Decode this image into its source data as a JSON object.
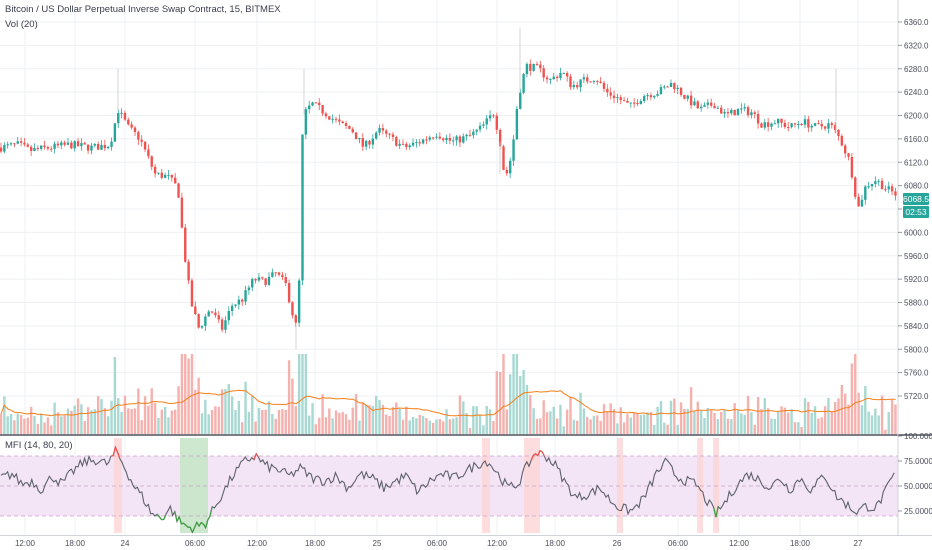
{
  "header": {
    "title": "Bitcoin / US Dollar Perpetual Inverse Swap Contract, 15, BITMEX",
    "volume_indicator": "Vol (20)",
    "mfi_indicator": "MFI (14, 80, 20)"
  },
  "price_tags": {
    "last_price": "6068.5",
    "countdown": "02:53"
  },
  "colors": {
    "up": "#26a69a",
    "down": "#ef5350",
    "vol_up": "#a8d8d2",
    "vol_down": "#f5b1ae",
    "vol_ma": "#f57f17",
    "mfi_line": "#5d606b",
    "mfi_band": "#f3e5f5",
    "overbought": "#fdd5d4",
    "oversold": "#c8e6c9"
  },
  "chart_data": [
    {
      "type": "candlestick",
      "series_name": "Bitcoin / US Dollar Perpetual Inverse Swap Contract, 15, BITMEX",
      "y_ticks": [
        5720,
        5760,
        5800,
        5840,
        5880,
        5920,
        5960,
        6000,
        6040,
        6080,
        6120,
        6160,
        6200,
        6240,
        6280,
        6320,
        6360
      ],
      "ylim": [
        5700,
        6380
      ],
      "x_tick_labels": [
        "12:00",
        "18:00",
        "24",
        "06:00",
        "12:00",
        "18:00",
        "25",
        "06:00",
        "12:00",
        "18:00",
        "26",
        "06:00",
        "12:00",
        "18:00",
        "27"
      ],
      "last_price": 6068.5,
      "anchors": [
        [
          0,
          6145
        ],
        [
          18,
          6150
        ],
        [
          30,
          6140
        ],
        [
          50,
          6145
        ],
        [
          70,
          6150
        ],
        [
          92,
          6145
        ],
        [
          110,
          6150
        ],
        [
          118,
          6210
        ],
        [
          128,
          6180
        ],
        [
          140,
          6160
        ],
        [
          155,
          6100
        ],
        [
          168,
          6095
        ],
        [
          178,
          6075
        ],
        [
          184,
          5970
        ],
        [
          191,
          5880
        ],
        [
          199,
          5835
        ],
        [
          210,
          5870
        ],
        [
          222,
          5835
        ],
        [
          232,
          5875
        ],
        [
          242,
          5885
        ],
        [
          254,
          5920
        ],
        [
          264,
          5915
        ],
        [
          276,
          5930
        ],
        [
          286,
          5910
        ],
        [
          294,
          5850
        ],
        [
          298,
          5830
        ],
        [
          303,
          6200
        ],
        [
          312,
          6220
        ],
        [
          325,
          6205
        ],
        [
          340,
          6185
        ],
        [
          352,
          6175
        ],
        [
          364,
          6145
        ],
        [
          378,
          6175
        ],
        [
          392,
          6160
        ],
        [
          404,
          6145
        ],
        [
          420,
          6155
        ],
        [
          436,
          6170
        ],
        [
          452,
          6155
        ],
        [
          470,
          6165
        ],
        [
          482,
          6180
        ],
        [
          494,
          6205
        ],
        [
          500,
          6155
        ],
        [
          505,
          6090
        ],
        [
          512,
          6135
        ],
        [
          518,
          6230
        ],
        [
          526,
          6285
        ],
        [
          538,
          6280
        ],
        [
          550,
          6260
        ],
        [
          562,
          6275
        ],
        [
          572,
          6250
        ],
        [
          584,
          6260
        ],
        [
          596,
          6265
        ],
        [
          606,
          6240
        ],
        [
          618,
          6230
        ],
        [
          630,
          6215
        ],
        [
          644,
          6235
        ],
        [
          658,
          6240
        ],
        [
          672,
          6255
        ],
        [
          686,
          6230
        ],
        [
          700,
          6210
        ],
        [
          714,
          6220
        ],
        [
          726,
          6200
        ],
        [
          740,
          6210
        ],
        [
          752,
          6205
        ],
        [
          762,
          6185
        ],
        [
          776,
          6190
        ],
        [
          790,
          6180
        ],
        [
          802,
          6190
        ],
        [
          816,
          6180
        ],
        [
          830,
          6185
        ],
        [
          840,
          6160
        ],
        [
          850,
          6120
        ],
        [
          858,
          6040
        ],
        [
          866,
          6080
        ],
        [
          876,
          6090
        ],
        [
          886,
          6075
        ],
        [
          896,
          6065
        ]
      ]
    },
    {
      "type": "bar",
      "series_name": "Vol (20)",
      "moving_average_length": 20
    },
    {
      "type": "line",
      "series_name": "MFI (14, 80, 20)",
      "y_ticks": [
        25,
        50,
        75,
        100
      ],
      "ylim": [
        0,
        100
      ],
      "overbought": 80,
      "oversold": 20,
      "anchors": [
        [
          0,
          58
        ],
        [
          12,
          62
        ],
        [
          22,
          52
        ],
        [
          32,
          55
        ],
        [
          42,
          46
        ],
        [
          52,
          60
        ],
        [
          62,
          52
        ],
        [
          72,
          64
        ],
        [
          84,
          74
        ],
        [
          96,
          76
        ],
        [
          108,
          72
        ],
        [
          116,
          85
        ],
        [
          124,
          70
        ],
        [
          134,
          50
        ],
        [
          142,
          40
        ],
        [
          152,
          22
        ],
        [
          162,
          18
        ],
        [
          170,
          28
        ],
        [
          180,
          14
        ],
        [
          190,
          8
        ],
        [
          198,
          10
        ],
        [
          206,
          13
        ],
        [
          214,
          28
        ],
        [
          224,
          45
        ],
        [
          234,
          62
        ],
        [
          246,
          76
        ],
        [
          256,
          80
        ],
        [
          266,
          70
        ],
        [
          278,
          66
        ],
        [
          290,
          60
        ],
        [
          300,
          68
        ],
        [
          312,
          58
        ],
        [
          324,
          55
        ],
        [
          336,
          60
        ],
        [
          348,
          48
        ],
        [
          360,
          62
        ],
        [
          372,
          58
        ],
        [
          384,
          48
        ],
        [
          396,
          55
        ],
        [
          406,
          60
        ],
        [
          418,
          44
        ],
        [
          430,
          55
        ],
        [
          442,
          62
        ],
        [
          454,
          58
        ],
        [
          466,
          65
        ],
        [
          478,
          72
        ],
        [
          488,
          75
        ],
        [
          498,
          62
        ],
        [
          508,
          48
        ],
        [
          518,
          52
        ],
        [
          526,
          68
        ],
        [
          536,
          84
        ],
        [
          546,
          80
        ],
        [
          556,
          70
        ],
        [
          566,
          52
        ],
        [
          576,
          38
        ],
        [
          588,
          42
        ],
        [
          600,
          48
        ],
        [
          610,
          36
        ],
        [
          620,
          28
        ],
        [
          632,
          25
        ],
        [
          644,
          38
        ],
        [
          656,
          62
        ],
        [
          666,
          74
        ],
        [
          676,
          60
        ],
        [
          686,
          55
        ],
        [
          696,
          52
        ],
        [
          706,
          36
        ],
        [
          716,
          22
        ],
        [
          726,
          35
        ],
        [
          736,
          50
        ],
        [
          748,
          62
        ],
        [
          760,
          56
        ],
        [
          770,
          48
        ],
        [
          780,
          58
        ],
        [
          790,
          46
        ],
        [
          800,
          58
        ],
        [
          812,
          45
        ],
        [
          824,
          62
        ],
        [
          836,
          40
        ],
        [
          846,
          32
        ],
        [
          856,
          24
        ],
        [
          866,
          30
        ],
        [
          876,
          28
        ],
        [
          886,
          45
        ],
        [
          896,
          65
        ]
      ]
    }
  ]
}
